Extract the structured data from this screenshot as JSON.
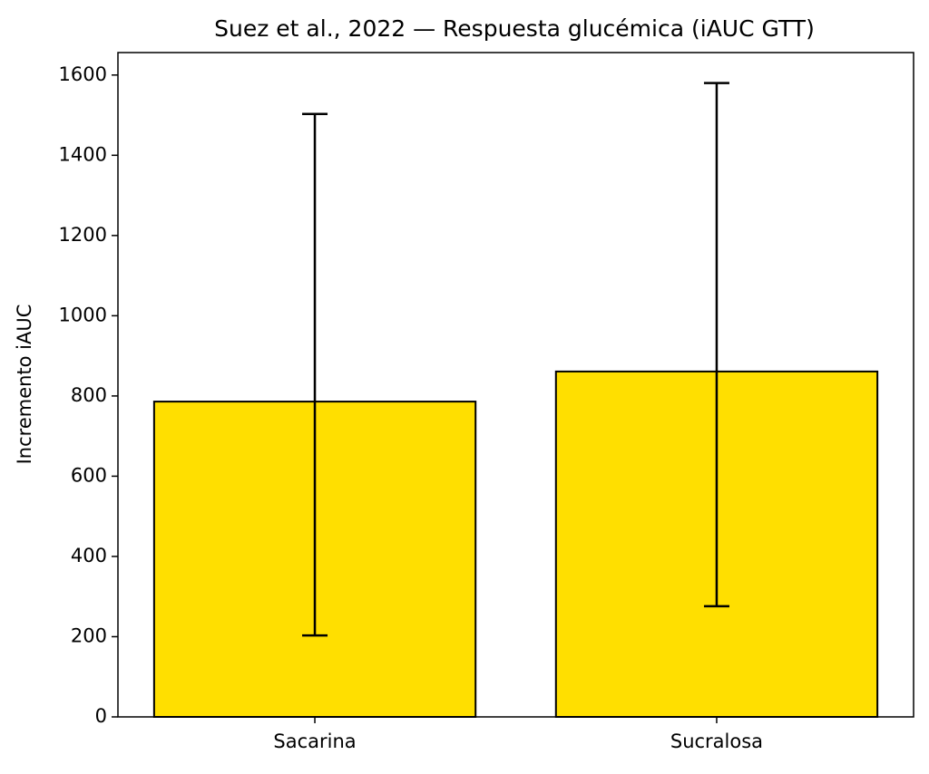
{
  "chart_data": {
    "type": "bar",
    "title": "Suez et al., 2022 — Respuesta glucémica (iAUC GTT)",
    "y_label": "Incremento iAUC",
    "categories": [
      "Sacarina",
      "Sucralosa"
    ],
    "values": [
      786,
      861
    ],
    "err_minus": [
      583,
      585
    ],
    "err_plus": [
      717,
      719
    ],
    "color": "#ffdf00",
    "ylim": [
      0,
      1656
    ],
    "yticks": [
      0,
      200,
      400,
      600,
      800,
      1000,
      1200,
      1400,
      1600
    ],
    "grid": false
  }
}
